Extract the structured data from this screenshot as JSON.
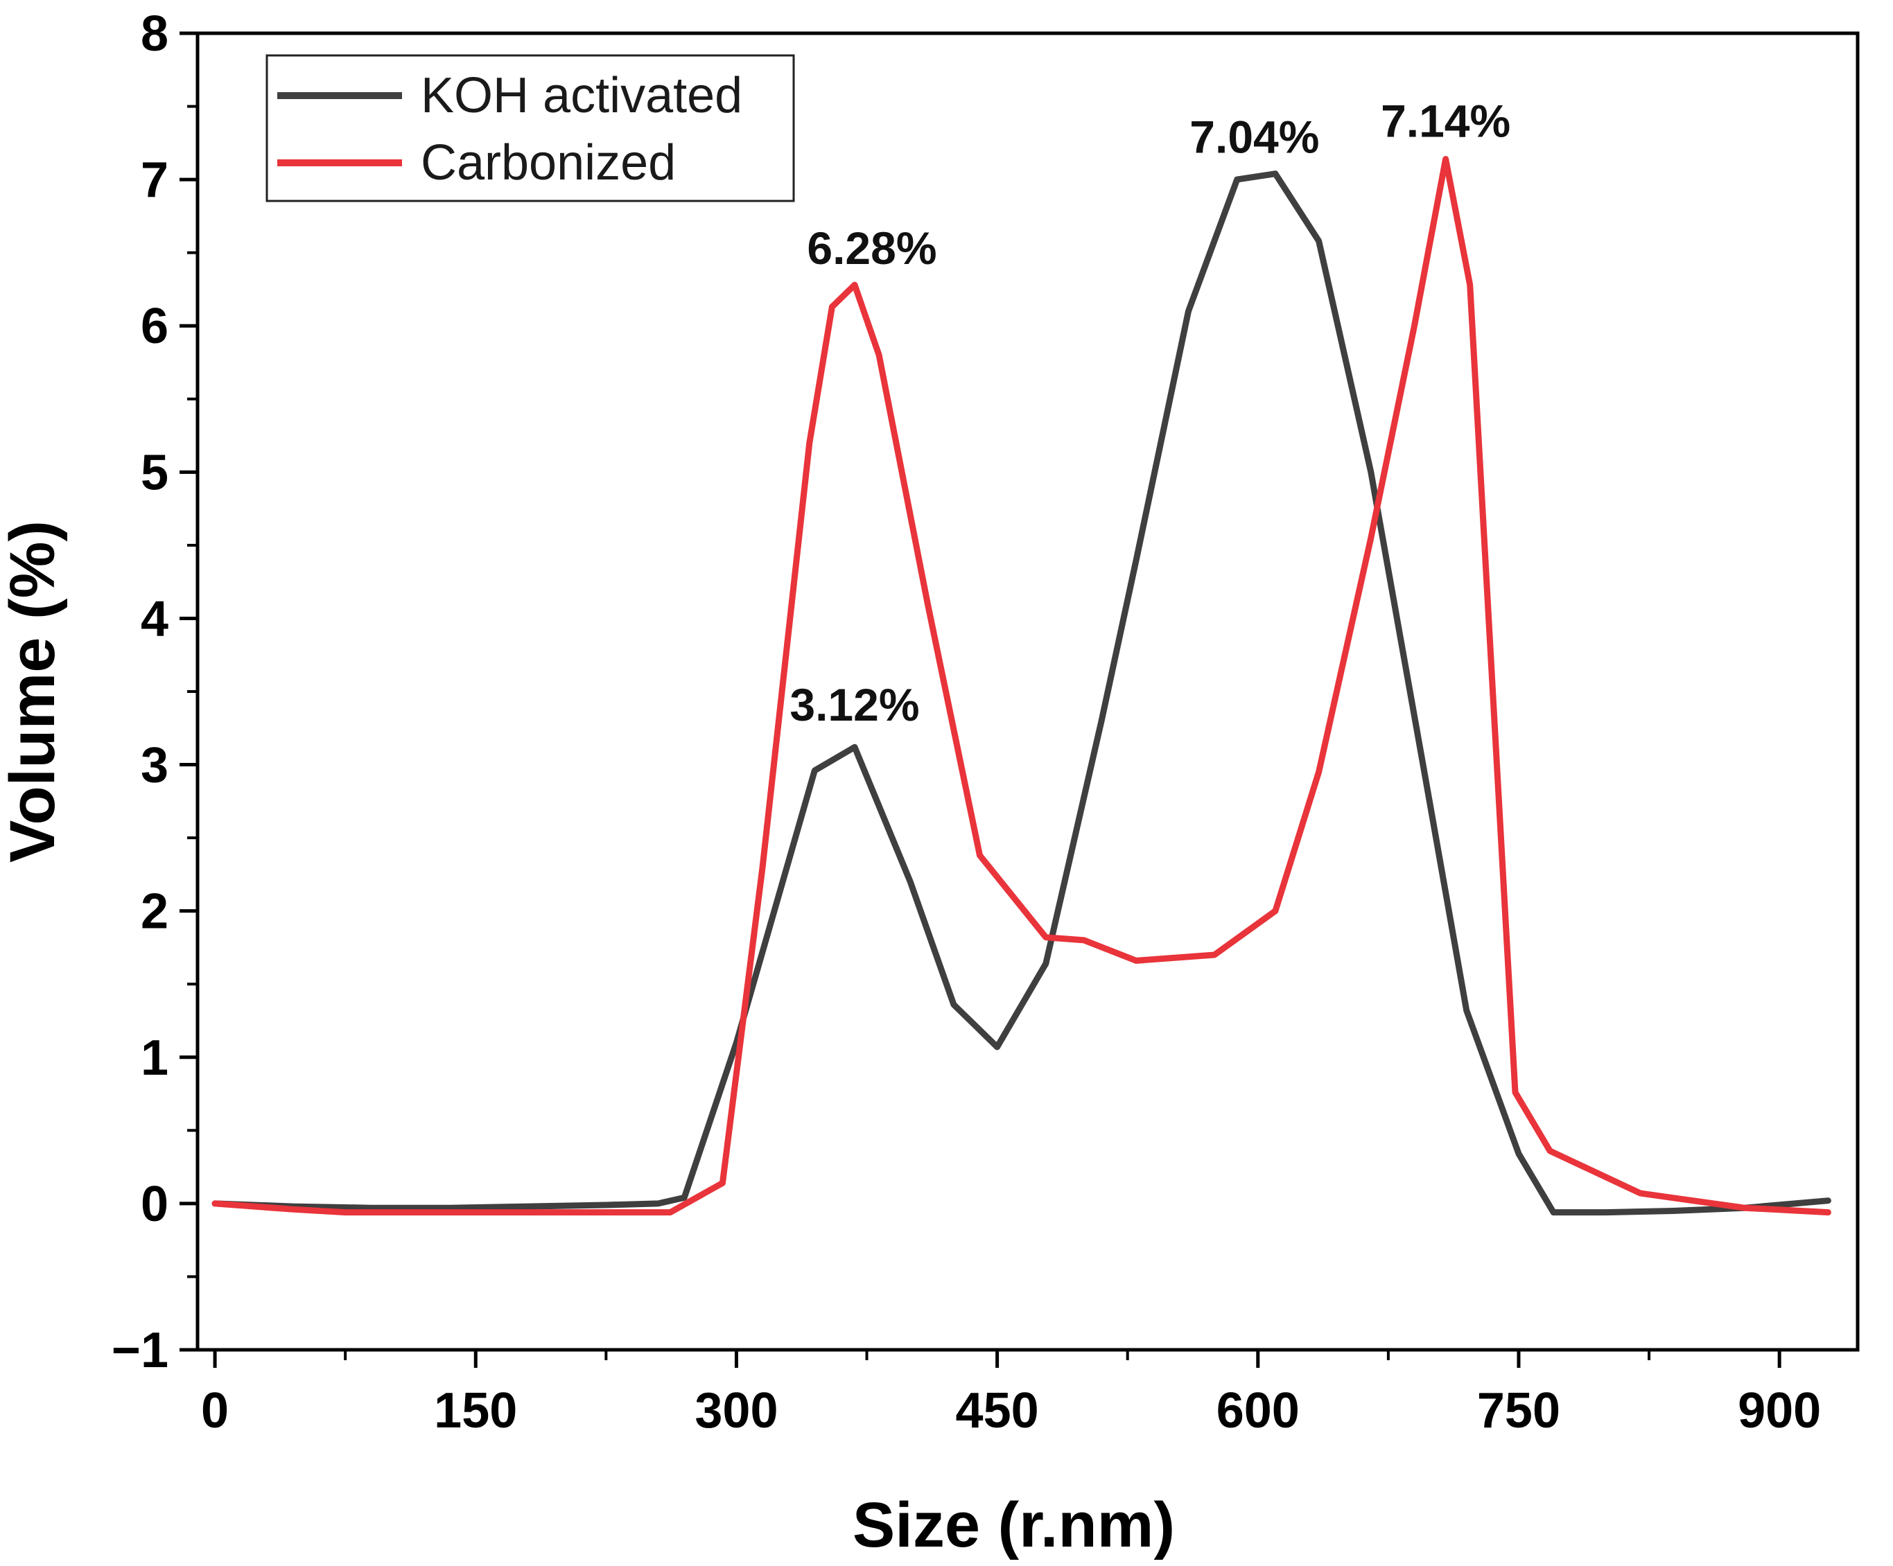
{
  "chart_data": {
    "type": "line",
    "title": "",
    "xlabel": "Size (r.nm)",
    "ylabel": "Volume (%)",
    "xlim": [
      -10,
      945
    ],
    "ylim": [
      -1,
      8
    ],
    "x_ticks": [
      0,
      150,
      300,
      450,
      600,
      750,
      900
    ],
    "y_ticks": [
      -1,
      0,
      1,
      2,
      3,
      4,
      5,
      6,
      7,
      8
    ],
    "x_minor_step": 75,
    "y_minor_step": 0.5,
    "grid": false,
    "legend_position": "top-left",
    "series": [
      {
        "name": "KOH activated",
        "color": "#3f3f3f",
        "x": [
          0,
          45,
          90,
          135,
          180,
          225,
          255,
          270,
          300,
          345,
          368,
          400,
          425,
          450,
          478,
          510,
          530,
          560,
          588,
          610,
          635,
          665,
          695,
          720,
          750,
          770,
          800,
          840,
          880,
          928
        ],
        "y": [
          0,
          -0.02,
          -0.03,
          -0.03,
          -0.02,
          -0.01,
          0,
          0.04,
          1.1,
          2.96,
          3.12,
          2.2,
          1.36,
          1.07,
          1.64,
          3.3,
          4.4,
          6.1,
          7.0,
          7.04,
          6.58,
          5.0,
          3.0,
          1.32,
          0.34,
          -0.06,
          -0.06,
          -0.05,
          -0.03,
          0.02
        ]
      },
      {
        "name": "Carbonized",
        "color": "#e8343a",
        "x": [
          0,
          45,
          75,
          150,
          225,
          262,
          292,
          315,
          342,
          355,
          368,
          382,
          410,
          440,
          478,
          500,
          530,
          575,
          610,
          635,
          665,
          690,
          708,
          722,
          748,
          768,
          820,
          880,
          928
        ],
        "y": [
          0,
          -0.04,
          -0.06,
          -0.06,
          -0.06,
          -0.06,
          0.14,
          2.3,
          5.2,
          6.13,
          6.28,
          5.8,
          4.1,
          2.38,
          1.82,
          1.8,
          1.66,
          1.7,
          2.0,
          2.95,
          4.55,
          6.0,
          7.14,
          6.28,
          0.76,
          0.36,
          0.07,
          -0.03,
          -0.06
        ]
      }
    ],
    "annotations": [
      {
        "text": "6.28%",
        "x": 368,
        "y": 6.28,
        "series": "Carbonized"
      },
      {
        "text": "3.12%",
        "x": 368,
        "y": 3.12,
        "series": "KOH activated"
      },
      {
        "text": "7.04%",
        "x": 610,
        "y": 7.04,
        "series": "KOH activated"
      },
      {
        "text": "7.14%",
        "x": 708,
        "y": 7.14,
        "series": "Carbonized"
      }
    ]
  }
}
